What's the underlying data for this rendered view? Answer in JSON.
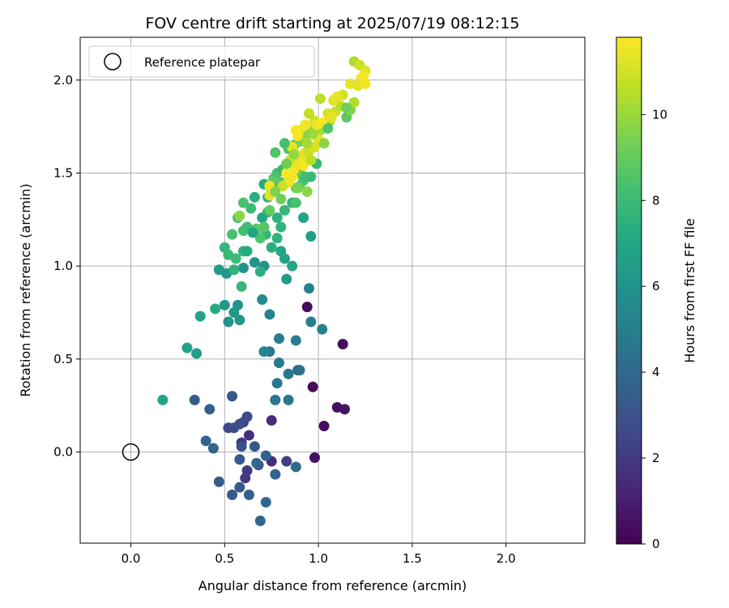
{
  "chart_data": {
    "type": "scatter",
    "title": "FOV centre drift starting at 2025/07/19 08:12:15",
    "xlabel": "Angular distance from reference (arcmin)",
    "ylabel": "Rotation from reference (arcmin)",
    "xlim": [
      -0.27,
      2.42
    ],
    "ylim": [
      -0.49,
      2.23
    ],
    "xticks": [
      0.0,
      0.5,
      1.0,
      1.5,
      2.0
    ],
    "yticks": [
      0.0,
      0.5,
      1.0,
      1.5,
      2.0
    ],
    "grid": true,
    "legend": {
      "position": "top-left",
      "entries": [
        "Reference platepar"
      ]
    },
    "reference_point": {
      "x": 0.0,
      "y": 0.0,
      "label": "Reference platepar"
    },
    "colorbar": {
      "label": "Hours from first FF file",
      "colormap": "viridis",
      "range": [
        0,
        11.8
      ],
      "ticks": [
        0,
        2,
        4,
        6,
        8,
        10
      ]
    },
    "series": [
      {
        "points": [
          [
            0.94,
            0.78,
            0.3
          ],
          [
            1.13,
            0.58,
            0.4
          ],
          [
            0.97,
            0.35,
            0.3
          ],
          [
            1.1,
            0.24,
            0.5
          ],
          [
            1.14,
            0.23,
            0.6
          ],
          [
            1.03,
            0.14,
            0.4
          ],
          [
            0.98,
            -0.03,
            0.5
          ],
          [
            0.75,
            0.17,
            1.5
          ],
          [
            0.59,
            0.05,
            1.8
          ],
          [
            0.63,
            0.09,
            1.7
          ],
          [
            0.62,
            -0.1,
            2.0
          ],
          [
            0.61,
            -0.14,
            1.9
          ],
          [
            0.75,
            -0.05,
            1.6
          ],
          [
            0.83,
            -0.05,
            2.2
          ],
          [
            0.52,
            0.13,
            2.6
          ],
          [
            0.55,
            0.13,
            2.6
          ],
          [
            0.6,
            0.16,
            2.4
          ],
          [
            0.62,
            0.19,
            2.7
          ],
          [
            0.58,
            0.15,
            2.9
          ],
          [
            0.59,
            0.03,
            3.0
          ],
          [
            0.68,
            -0.07,
            3.2
          ],
          [
            0.58,
            -0.04,
            3.3
          ],
          [
            0.66,
            0.03,
            3.1
          ],
          [
            0.34,
            0.28,
            3.4
          ],
          [
            0.54,
            0.3,
            3.2
          ],
          [
            0.42,
            0.23,
            3.6
          ],
          [
            0.47,
            -0.16,
            3.4
          ],
          [
            0.54,
            -0.23,
            3.3
          ],
          [
            0.58,
            -0.19,
            3.3
          ],
          [
            0.63,
            -0.23,
            3.6
          ],
          [
            0.69,
            -0.37,
            3.8
          ],
          [
            0.72,
            -0.27,
            4.0
          ],
          [
            0.4,
            0.06,
            3.8
          ],
          [
            0.44,
            0.02,
            3.8
          ],
          [
            0.67,
            -0.06,
            3.9
          ],
          [
            0.72,
            -0.02,
            3.7
          ],
          [
            0.77,
            -0.12,
            3.8
          ],
          [
            0.88,
            -0.08,
            4.1
          ],
          [
            0.89,
            0.44,
            4.0
          ],
          [
            0.9,
            0.44,
            4.3
          ],
          [
            0.77,
            0.28,
            4.5
          ],
          [
            0.84,
            0.28,
            4.6
          ],
          [
            0.84,
            0.42,
            4.6
          ],
          [
            0.78,
            0.37,
            4.7
          ],
          [
            0.74,
            0.54,
            4.8
          ],
          [
            0.79,
            0.48,
            4.8
          ],
          [
            0.79,
            0.61,
            4.9
          ],
          [
            0.88,
            0.6,
            5.0
          ],
          [
            1.02,
            0.66,
            5.1
          ],
          [
            0.96,
            0.7,
            5.0
          ],
          [
            0.95,
            0.88,
            5.2
          ],
          [
            0.74,
            0.74,
            5.2
          ],
          [
            0.71,
            0.54,
            5.4
          ],
          [
            0.7,
            0.82,
            5.7
          ],
          [
            0.52,
            0.7,
            6.0
          ],
          [
            0.55,
            0.75,
            6.3
          ],
          [
            0.58,
            0.71,
            6.2
          ],
          [
            0.57,
            0.79,
            6.0
          ],
          [
            0.5,
            0.79,
            6.3
          ],
          [
            0.37,
            0.73,
            6.8
          ],
          [
            0.45,
            0.77,
            7.2
          ],
          [
            0.3,
            0.56,
            6.8
          ],
          [
            0.35,
            0.53,
            6.5
          ],
          [
            0.17,
            0.28,
            6.9
          ],
          [
            0.47,
            0.98,
            6.5
          ],
          [
            0.51,
            0.96,
            6.3
          ],
          [
            0.6,
            0.99,
            6.1
          ],
          [
            0.66,
            1.02,
            6.0
          ],
          [
            0.71,
            1.0,
            5.9
          ],
          [
            0.83,
            0.93,
            6.4
          ],
          [
            0.69,
            0.97,
            7.4
          ],
          [
            0.59,
            0.89,
            7.8
          ],
          [
            0.55,
            0.98,
            7.6
          ],
          [
            0.52,
            1.06,
            7.9
          ],
          [
            0.5,
            1.1,
            7.8
          ],
          [
            0.54,
            1.17,
            8.3
          ],
          [
            0.56,
            1.04,
            8.0
          ],
          [
            0.6,
            1.08,
            7.5
          ],
          [
            0.62,
            1.08,
            7.2
          ],
          [
            0.72,
            1.17,
            7.8
          ],
          [
            0.75,
            1.1,
            7.4
          ],
          [
            0.78,
            1.15,
            7.6
          ],
          [
            0.8,
            1.08,
            7.0
          ],
          [
            0.82,
            1.04,
            6.9
          ],
          [
            0.86,
            1.0,
            6.9
          ],
          [
            0.96,
            1.16,
            6.6
          ],
          [
            0.92,
            1.26,
            6.9
          ],
          [
            0.7,
            1.26,
            7.0
          ],
          [
            0.73,
            1.29,
            7.3
          ],
          [
            0.78,
            1.26,
            7.5
          ],
          [
            0.8,
            1.21,
            7.7
          ],
          [
            0.82,
            1.3,
            7.8
          ],
          [
            0.86,
            1.34,
            7.6
          ],
          [
            0.88,
            1.34,
            8.4
          ],
          [
            0.57,
            1.26,
            8.3
          ],
          [
            0.58,
            1.27,
            9.8
          ],
          [
            0.6,
            1.19,
            8.2
          ],
          [
            0.62,
            1.21,
            8.1
          ],
          [
            0.64,
            1.31,
            8.0
          ],
          [
            0.66,
            1.37,
            7.4
          ],
          [
            0.6,
            1.34,
            8.4
          ],
          [
            0.71,
            1.44,
            7.2
          ],
          [
            0.73,
            1.37,
            7.4
          ],
          [
            0.75,
            1.41,
            7.6
          ],
          [
            0.78,
            1.44,
            8.3
          ],
          [
            0.8,
            1.45,
            8.6
          ],
          [
            0.76,
            1.47,
            8.9
          ],
          [
            0.78,
            1.5,
            8.4
          ],
          [
            0.81,
            1.52,
            7.9
          ],
          [
            0.84,
            1.54,
            8.0
          ],
          [
            0.87,
            1.52,
            8.6
          ],
          [
            0.9,
            1.5,
            9.1
          ],
          [
            0.88,
            1.42,
            9.4
          ],
          [
            0.9,
            1.43,
            9.0
          ],
          [
            0.92,
            1.46,
            8.4
          ],
          [
            0.93,
            1.48,
            8.1
          ],
          [
            0.96,
            1.48,
            8.0
          ],
          [
            0.99,
            1.55,
            7.9
          ],
          [
            0.77,
            1.61,
            8.5
          ],
          [
            0.84,
            1.63,
            8.6
          ],
          [
            0.87,
            1.65,
            8.8
          ],
          [
            0.9,
            1.67,
            9.3
          ],
          [
            0.93,
            1.7,
            9.6
          ],
          [
            0.96,
            1.72,
            9.9
          ],
          [
            0.98,
            1.74,
            10.1
          ],
          [
            1.01,
            1.73,
            10.3
          ],
          [
            1.04,
            1.75,
            10.5
          ],
          [
            1.06,
            1.78,
            10.4
          ],
          [
            1.09,
            1.83,
            10.8
          ],
          [
            1.12,
            1.86,
            10.6
          ],
          [
            1.15,
            1.8,
            8.8
          ],
          [
            1.17,
            1.84,
            9.6
          ],
          [
            1.19,
            1.88,
            10.4
          ],
          [
            1.21,
            1.97,
            11.3
          ],
          [
            1.23,
            2.01,
            11.5
          ],
          [
            1.25,
            1.98,
            11.6
          ],
          [
            1.17,
            1.98,
            11.4
          ],
          [
            1.19,
            2.1,
            10.4
          ],
          [
            1.22,
            2.08,
            10.9
          ],
          [
            1.25,
            2.05,
            11.2
          ],
          [
            1.24,
            2.02,
            11.6
          ],
          [
            1.13,
            1.92,
            11.0
          ],
          [
            1.08,
            1.89,
            11.2
          ],
          [
            1.1,
            1.91,
            11.4
          ],
          [
            1.01,
            1.9,
            10.6
          ],
          [
            1.05,
            1.82,
            11.1
          ],
          [
            1.07,
            1.8,
            11.4
          ],
          [
            0.98,
            1.78,
            10.9
          ],
          [
            0.95,
            1.82,
            10.7
          ],
          [
            0.9,
            1.73,
            11.3
          ],
          [
            0.89,
            1.7,
            11.6
          ],
          [
            0.86,
            1.64,
            11.4
          ],
          [
            0.88,
            1.6,
            11.7
          ],
          [
            0.91,
            1.58,
            11.5
          ],
          [
            0.93,
            1.61,
            11.2
          ],
          [
            0.95,
            1.62,
            10.9
          ],
          [
            0.98,
            1.64,
            11.1
          ],
          [
            1.0,
            1.68,
            11.3
          ],
          [
            0.85,
            1.57,
            11.0
          ],
          [
            0.87,
            1.52,
            11.6
          ],
          [
            0.83,
            1.5,
            11.8
          ],
          [
            0.86,
            1.48,
            11.7
          ],
          [
            0.84,
            1.45,
            11.5
          ],
          [
            0.81,
            1.43,
            10.9
          ],
          [
            0.74,
            1.43,
            11.5
          ],
          [
            0.74,
            1.38,
            11.3
          ],
          [
            0.9,
            1.55,
            11.4
          ],
          [
            0.92,
            1.54,
            11.7
          ],
          [
            0.96,
            1.57,
            10.6
          ],
          [
            0.94,
            1.4,
            9.7
          ],
          [
            0.89,
            1.42,
            9.4
          ],
          [
            0.83,
            1.55,
            9.2
          ],
          [
            0.77,
            1.4,
            9.5
          ],
          [
            0.8,
            1.36,
            9.2
          ],
          [
            0.74,
            1.3,
            9.0
          ],
          [
            0.71,
            1.21,
            8.6
          ],
          [
            0.67,
            1.2,
            8.7
          ],
          [
            0.69,
            1.15,
            8.5
          ],
          [
            0.65,
            1.18,
            7.0
          ],
          [
            0.82,
            1.66,
            8.3
          ],
          [
            0.87,
            1.6,
            9.9
          ],
          [
            0.94,
            1.66,
            10.2
          ],
          [
            0.97,
            1.71,
            10.0
          ],
          [
            0.99,
            1.76,
            11.5
          ],
          [
            1.02,
            1.77,
            11.7
          ],
          [
            0.93,
            1.76,
            11.6
          ],
          [
            0.88,
            1.73,
            11.7
          ],
          [
            1.05,
            1.74,
            8.5
          ],
          [
            1.15,
            1.85,
            9.2
          ],
          [
            1.03,
            1.66,
            9.8
          ]
        ]
      }
    ]
  }
}
